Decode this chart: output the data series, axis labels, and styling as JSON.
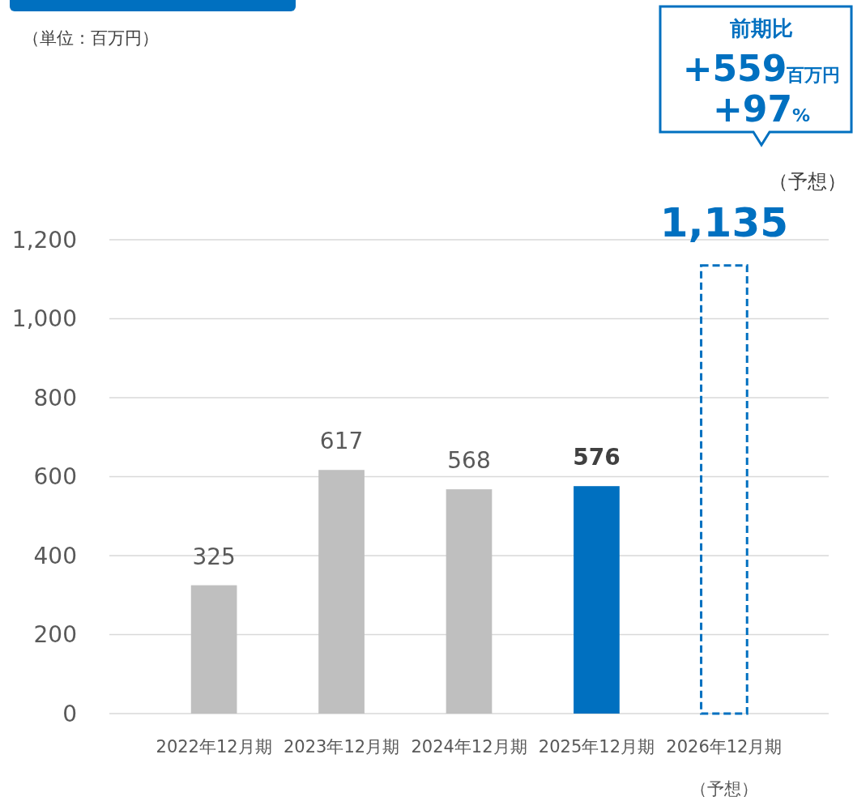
{
  "chart_data": {
    "type": "bar",
    "categories": [
      "2022年12月期",
      "2023年12月期",
      "2024年12月期",
      "2025年12月期",
      "2026年12月期（予想）"
    ],
    "series": [
      {
        "colors": [
          "#bfbfbf",
          "#bfbfbf",
          "#bfbfbf",
          "#0070c0",
          null
        ],
        "values": [
          325,
          617,
          568,
          576,
          null
        ],
        "value_labels": [
          "325",
          "617",
          "568",
          "576",
          null
        ]
      },
      {
        "color": "#0070c0",
        "line_style": "dashed",
        "values": [
          null,
          null,
          null,
          null,
          1135
        ],
        "value_labels": [
          null,
          null,
          null,
          null,
          "1,135"
        ]
      }
    ],
    "ylim": [
      0,
      1200
    ],
    "yticks": [
      0,
      200,
      400,
      600,
      800,
      {
        "value": 1000,
        "label": "1,000"
      },
      {
        "value": 1200,
        "label": "1,200"
      }
    ],
    "grid": "y",
    "annotations": [
      "（単位：百万円）",
      "（予想）",
      "前期比",
      "+559百万円",
      "+97%"
    ]
  }
}
